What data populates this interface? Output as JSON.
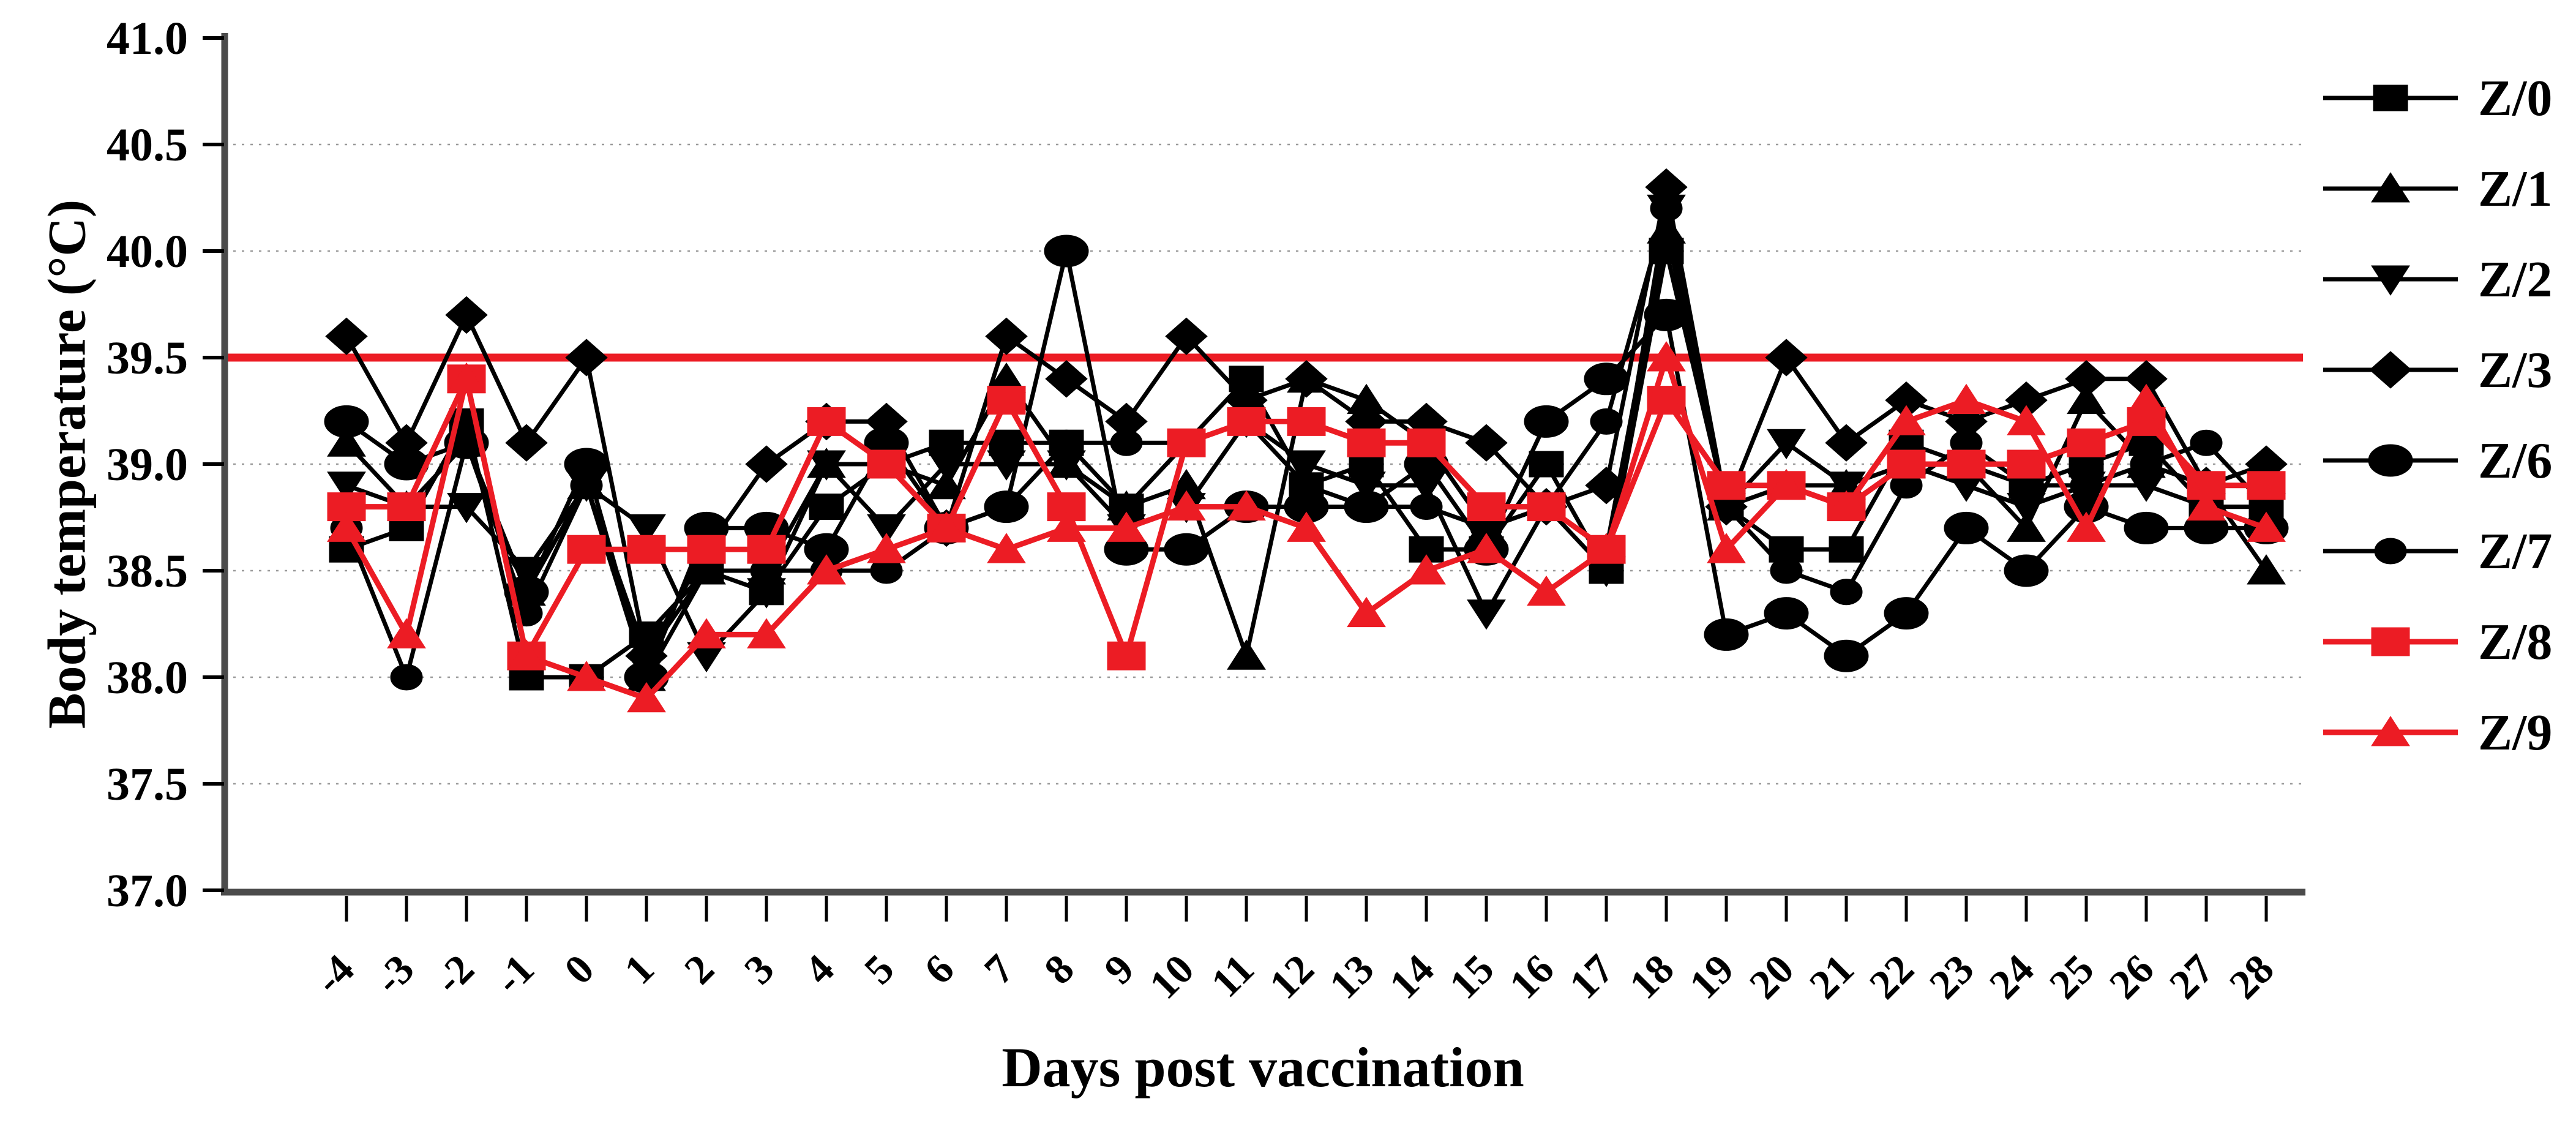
{
  "figure": {
    "y_axis_title": "Body temperature (°C)",
    "x_axis_title": "Days post vaccination"
  },
  "chart_data": {
    "type": "line",
    "title": "",
    "xlabel": "Days post vaccination",
    "ylabel": "Body temperature (°C)",
    "x": [
      -4,
      -3,
      -2,
      -1,
      0,
      1,
      2,
      3,
      4,
      5,
      6,
      7,
      8,
      9,
      10,
      11,
      12,
      13,
      14,
      15,
      16,
      17,
      18,
      19,
      20,
      21,
      22,
      23,
      24,
      25,
      26,
      27,
      28
    ],
    "xticklabels": [
      "-4",
      "-3",
      "-2",
      "-1",
      "0",
      "1",
      "2",
      "3",
      "4",
      "5",
      "6",
      "7",
      "8",
      "9",
      "10",
      "11",
      "12",
      "13",
      "14",
      "15",
      "16",
      "17",
      "18",
      "19",
      "20",
      "21",
      "22",
      "23",
      "24",
      "25",
      "26",
      "27",
      "28"
    ],
    "ylim": [
      37.0,
      41.0
    ],
    "yticks": [
      37.0,
      37.5,
      38.0,
      38.5,
      39.0,
      39.5,
      40.0,
      40.5,
      41.0
    ],
    "yticklabels": [
      "37.0",
      "37.5",
      "38.0",
      "38.5",
      "39.0",
      "39.5",
      "40.0",
      "40.5",
      "41.0"
    ],
    "grid": "dotted horizontal gridlines at 0.5 steps",
    "legend_position": "right",
    "threshold_line": {
      "value": 39.5,
      "color": "#ec1c24",
      "style": "solid thick"
    },
    "colors": {
      "black_series": "#000000",
      "red_series": "#ec1c24"
    },
    "series": [
      {
        "name": "Z/0",
        "marker": "square",
        "color": "#000000",
        "values": [
          38.6,
          38.7,
          39.2,
          38.0,
          38.0,
          38.2,
          38.5,
          38.4,
          38.8,
          39.0,
          39.1,
          39.1,
          39.1,
          38.8,
          39.1,
          39.4,
          38.9,
          39.0,
          38.6,
          38.6,
          39.0,
          38.5,
          40.0,
          38.8,
          38.6,
          38.6,
          39.1,
          39.0,
          38.9,
          39.0,
          39.1,
          38.8,
          38.8
        ]
      },
      {
        "name": "Z/1",
        "marker": "triangle-up",
        "color": "#000000",
        "values": [
          39.1,
          38.8,
          39.1,
          38.4,
          38.9,
          38.0,
          38.5,
          38.5,
          39.0,
          39.0,
          38.9,
          39.4,
          39.0,
          38.8,
          38.9,
          38.1,
          39.4,
          39.3,
          39.1,
          38.7,
          38.8,
          38.6,
          40.1,
          38.8,
          38.9,
          38.9,
          39.0,
          39.0,
          38.7,
          39.3,
          39.0,
          38.9,
          38.5
        ]
      },
      {
        "name": "Z/2",
        "marker": "triangle-down",
        "color": "#000000",
        "values": [
          38.9,
          38.8,
          38.8,
          38.5,
          38.9,
          38.7,
          38.1,
          38.4,
          39.0,
          38.7,
          39.0,
          39.0,
          39.0,
          38.7,
          38.8,
          39.2,
          39.0,
          38.9,
          38.9,
          38.3,
          38.8,
          38.5,
          40.2,
          38.8,
          39.1,
          38.9,
          39.0,
          38.9,
          38.8,
          38.9,
          38.9,
          38.8,
          38.8
        ]
      },
      {
        "name": "Z/3",
        "marker": "diamond",
        "color": "#000000",
        "values": [
          39.6,
          39.1,
          39.7,
          39.1,
          39.5,
          38.1,
          38.6,
          39.0,
          39.2,
          39.2,
          38.7,
          39.6,
          39.4,
          39.2,
          39.6,
          39.3,
          39.4,
          39.2,
          39.2,
          39.1,
          38.8,
          38.9,
          40.3,
          38.8,
          39.5,
          39.1,
          39.3,
          39.2,
          39.3,
          39.4,
          39.4,
          38.9,
          39.0
        ]
      },
      {
        "name": "Z/6",
        "marker": "circle-large",
        "color": "#000000",
        "values": [
          39.2,
          39.0,
          39.1,
          38.4,
          39.0,
          38.0,
          38.7,
          38.7,
          38.6,
          39.1,
          38.7,
          38.8,
          40.0,
          38.6,
          38.6,
          38.8,
          38.8,
          38.8,
          39.0,
          38.6,
          39.2,
          39.4,
          39.7,
          38.2,
          38.3,
          38.1,
          38.3,
          38.7,
          38.5,
          38.8,
          38.7,
          38.7,
          38.7
        ]
      },
      {
        "name": "Z/7",
        "marker": "circle-small",
        "color": "#000000",
        "values": [
          38.7,
          38.0,
          39.1,
          38.3,
          38.9,
          38.1,
          38.5,
          38.5,
          38.5,
          38.5,
          38.7,
          38.8,
          39.1,
          39.1,
          39.1,
          39.2,
          38.9,
          38.8,
          38.8,
          38.7,
          38.8,
          39.2,
          40.2,
          38.8,
          38.5,
          38.4,
          38.9,
          39.1,
          38.9,
          38.9,
          39.0,
          39.1,
          38.8
        ]
      },
      {
        "name": "Z/8",
        "marker": "square",
        "color": "#ec1c24",
        "values": [
          38.8,
          38.8,
          39.4,
          38.1,
          38.6,
          38.6,
          38.6,
          38.6,
          39.2,
          39.0,
          38.7,
          39.3,
          38.8,
          38.1,
          39.1,
          39.2,
          39.2,
          39.1,
          39.1,
          38.8,
          38.8,
          38.6,
          39.3,
          38.9,
          38.9,
          38.8,
          39.0,
          39.0,
          39.0,
          39.1,
          39.2,
          38.9,
          38.9
        ]
      },
      {
        "name": "Z/9",
        "marker": "triangle-up",
        "color": "#ec1c24",
        "values": [
          38.7,
          38.2,
          39.4,
          38.1,
          38.0,
          37.9,
          38.2,
          38.2,
          38.5,
          38.6,
          38.7,
          38.6,
          38.7,
          38.7,
          38.8,
          38.8,
          38.7,
          38.3,
          38.5,
          38.6,
          38.4,
          38.6,
          39.5,
          38.6,
          38.9,
          38.8,
          39.2,
          39.3,
          39.2,
          38.7,
          39.3,
          38.8,
          38.7
        ]
      }
    ]
  }
}
